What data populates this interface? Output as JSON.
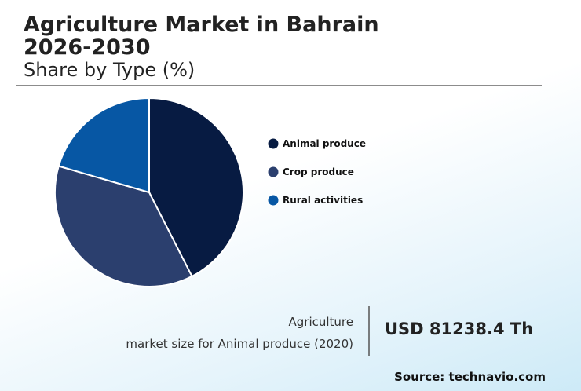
{
  "chart_data": {
    "type": "pie",
    "title_lines": [
      "Agriculture Market in Bahrain",
      "2026-2030"
    ],
    "subtitle": "Share by Type (%)",
    "categories": [
      "Animal produce",
      "Crop produce",
      "Rural activities"
    ],
    "values": [
      42.5,
      37,
      20.5
    ],
    "colors": [
      "#071b42",
      "#2b3f6e",
      "#0757a4"
    ],
    "stat": {
      "label_lines": [
        "Agriculture",
        "market size for Animal produce (2020)"
      ],
      "value": "USD 81238.4 Th"
    },
    "source": "Source: technavio.com"
  }
}
